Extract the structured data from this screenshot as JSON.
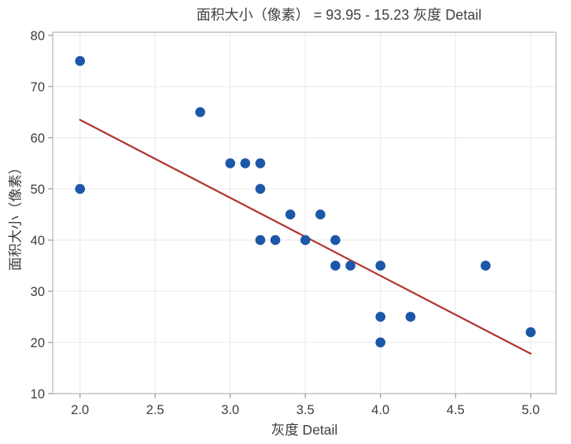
{
  "chart_data": {
    "type": "scatter",
    "title": "面积大小（像素） = 93.95 - 15.23 灰度 Detail",
    "xlabel": "灰度 Detail",
    "ylabel": "面积大小（像素）",
    "xlim": [
      1.818,
      5.169
    ],
    "ylim": [
      10,
      80.6
    ],
    "x_ticks": [
      2.0,
      2.5,
      3.0,
      3.5,
      4.0,
      4.5,
      5.0
    ],
    "x_tick_labels": [
      "2.0",
      "2.5",
      "3.0",
      "3.5",
      "4.0",
      "4.5",
      "5.0"
    ],
    "y_ticks": [
      10,
      20,
      30,
      40,
      50,
      60,
      70,
      80
    ],
    "y_tick_labels": [
      "10",
      "20",
      "30",
      "40",
      "50",
      "60",
      "70",
      "80"
    ],
    "grid": true,
    "points": [
      {
        "x": 2.0,
        "y": 75
      },
      {
        "x": 2.0,
        "y": 50
      },
      {
        "x": 2.8,
        "y": 65
      },
      {
        "x": 3.0,
        "y": 55
      },
      {
        "x": 3.1,
        "y": 55
      },
      {
        "x": 3.2,
        "y": 55
      },
      {
        "x": 3.2,
        "y": 50
      },
      {
        "x": 3.2,
        "y": 40
      },
      {
        "x": 3.3,
        "y": 40
      },
      {
        "x": 3.4,
        "y": 45
      },
      {
        "x": 3.5,
        "y": 40
      },
      {
        "x": 3.6,
        "y": 45
      },
      {
        "x": 3.7,
        "y": 40
      },
      {
        "x": 3.7,
        "y": 35
      },
      {
        "x": 3.8,
        "y": 35
      },
      {
        "x": 4.0,
        "y": 35
      },
      {
        "x": 4.0,
        "y": 25
      },
      {
        "x": 4.0,
        "y": 20
      },
      {
        "x": 4.2,
        "y": 25
      },
      {
        "x": 4.7,
        "y": 35
      },
      {
        "x": 5.0,
        "y": 22
      }
    ],
    "fit_line": {
      "equation": "面积大小（像素） = 93.95 - 15.23 灰度 Detail",
      "intercept": 93.95,
      "slope": -15.23,
      "x_start": 2.0,
      "x_end": 5.0
    },
    "colors": {
      "point": "#1c57a8",
      "line": "#b13833",
      "grid": "#ededed",
      "frame": "#c2c2c2",
      "tick": "#a0a0a0",
      "text": "#3d3d3d"
    }
  }
}
